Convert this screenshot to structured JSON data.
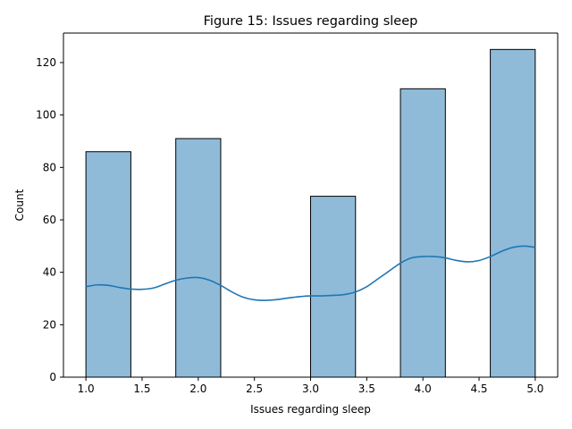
{
  "chart_data": {
    "type": "bar",
    "title": "Figure 15: Issues regarding sleep",
    "xlabel": "Issues regarding sleep",
    "ylabel": "Count",
    "xlim": [
      0.8,
      5.2
    ],
    "ylim": [
      0,
      131.25
    ],
    "xticks": [
      1.0,
      1.5,
      2.0,
      2.5,
      3.0,
      3.5,
      4.0,
      4.5,
      5.0
    ],
    "xtick_labels": [
      "1.0",
      "1.5",
      "2.0",
      "2.5",
      "3.0",
      "3.5",
      "4.0",
      "4.5",
      "5.0"
    ],
    "yticks": [
      0,
      20,
      40,
      60,
      80,
      100,
      120
    ],
    "ytick_labels": [
      "0",
      "20",
      "40",
      "60",
      "80",
      "100",
      "120"
    ],
    "bins": [
      {
        "x0": 1.0,
        "x1": 1.4,
        "count": 86
      },
      {
        "x0": 1.4,
        "x1": 1.8,
        "count": 0
      },
      {
        "x0": 1.8,
        "x1": 2.2,
        "count": 91
      },
      {
        "x0": 2.2,
        "x1": 2.6,
        "count": 0
      },
      {
        "x0": 2.6,
        "x1": 3.0,
        "count": 0
      },
      {
        "x0": 3.0,
        "x1": 3.4,
        "count": 69
      },
      {
        "x0": 3.4,
        "x1": 3.8,
        "count": 0
      },
      {
        "x0": 3.8,
        "x1": 4.2,
        "count": 110
      },
      {
        "x0": 4.2,
        "x1": 4.6,
        "count": 0
      },
      {
        "x0": 4.6,
        "x1": 5.0,
        "count": 125
      }
    ],
    "kde": {
      "x": [
        1.0,
        1.1,
        1.2,
        1.3,
        1.4,
        1.5,
        1.6,
        1.7,
        1.8,
        1.9,
        2.0,
        2.1,
        2.2,
        2.3,
        2.4,
        2.5,
        2.6,
        2.7,
        2.8,
        2.9,
        3.0,
        3.1,
        3.2,
        3.3,
        3.4,
        3.5,
        3.6,
        3.7,
        3.8,
        3.9,
        4.0,
        4.1,
        4.2,
        4.3,
        4.4,
        4.5,
        4.6,
        4.7,
        4.8,
        4.9,
        5.0
      ],
      "y": [
        34.5,
        35.2,
        35.0,
        34.2,
        33.6,
        33.5,
        34.0,
        35.5,
        37.0,
        37.8,
        38.0,
        37.0,
        35.0,
        32.5,
        30.5,
        29.5,
        29.3,
        29.6,
        30.2,
        30.7,
        31.0,
        31.0,
        31.2,
        31.5,
        32.5,
        34.5,
        37.5,
        40.5,
        43.5,
        45.5,
        46.0,
        46.0,
        45.5,
        44.5,
        44.0,
        44.5,
        46.0,
        48.0,
        49.5,
        50.0,
        49.5
      ]
    },
    "bar_color": "#1f77b4",
    "bar_fill_opacity": 0.5,
    "bar_edge_color": "#000000",
    "line_color": "#1f77b4",
    "grid": false
  }
}
